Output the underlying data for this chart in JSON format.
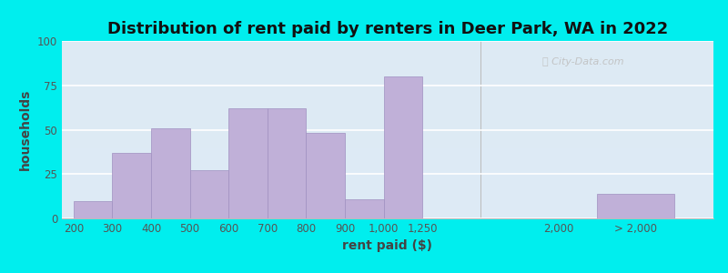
{
  "title": "Distribution of rent paid by renters in Deer Park, WA in 2022",
  "xlabel": "rent paid ($)",
  "ylabel": "households",
  "bar_color": "#c0b0d8",
  "bar_edgecolor": "#a090c0",
  "background_outer": "#00EEEE",
  "ylim": [
    0,
    100
  ],
  "yticks": [
    0,
    25,
    50,
    75,
    100
  ],
  "categories": [
    "200",
    "300",
    "400",
    "500",
    "600",
    "700",
    "800",
    "900",
    "1,000",
    "1,250",
    "2,000",
    "> 2,000"
  ],
  "values": [
    10,
    37,
    51,
    27,
    62,
    62,
    48,
    11,
    80,
    0,
    0,
    14
  ],
  "title_fontsize": 13,
  "axis_label_fontsize": 10,
  "tick_fontsize": 8.5,
  "watermark_text": "City-Data.com"
}
